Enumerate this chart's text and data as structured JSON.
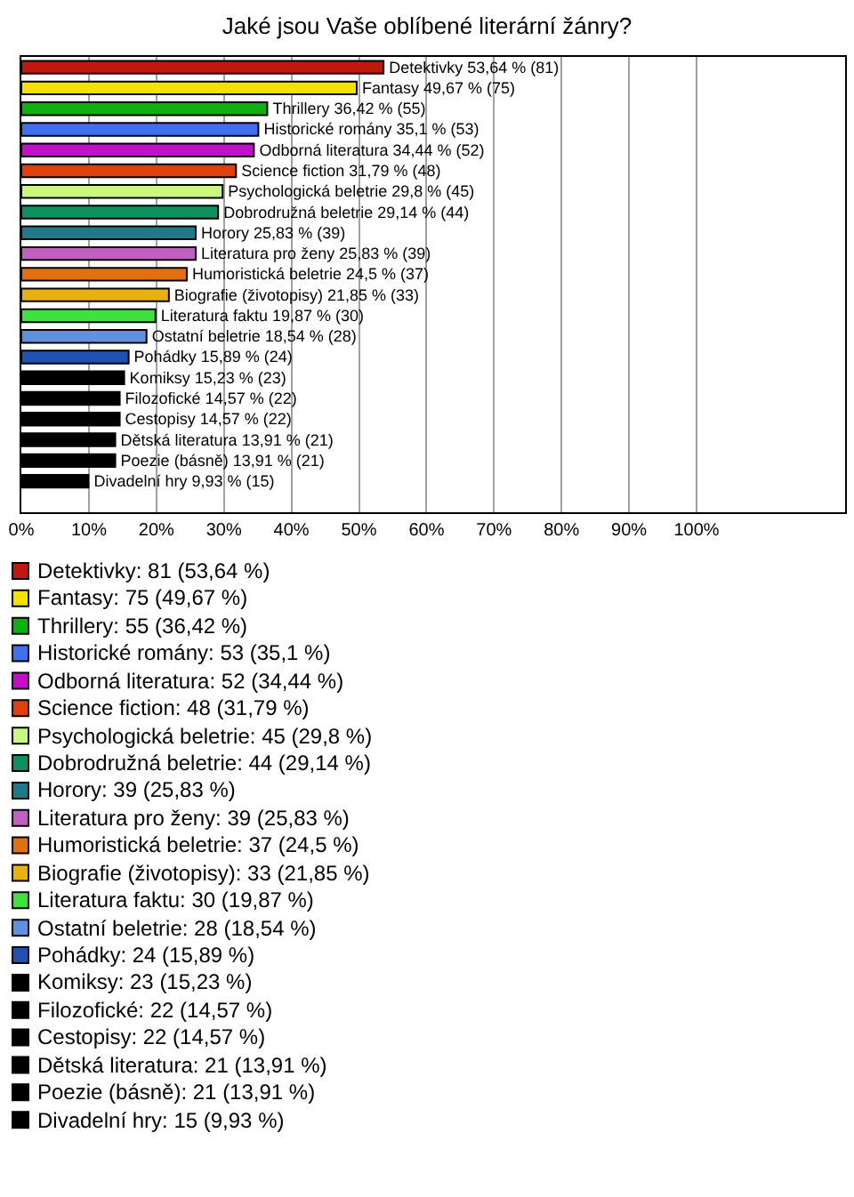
{
  "chart_data": {
    "type": "bar",
    "orientation": "horizontal",
    "title": "Jaké jsou Vaše oblíbené literární žánry?",
    "categories": [
      null,
      null,
      null,
      null,
      null,
      null,
      null,
      null,
      null,
      null,
      null,
      null,
      null,
      null,
      null,
      null,
      null,
      null,
      null,
      null,
      null,
      null
    ],
    "xlim": [
      0,
      122
    ],
    "xticks": [
      {
        "value": 0,
        "label": "0%"
      },
      {
        "value": 10,
        "label": "10%"
      },
      {
        "value": 20,
        "label": "20%"
      },
      {
        "value": 30,
        "label": "30%"
      },
      {
        "value": 40,
        "label": "40%"
      },
      {
        "value": 50,
        "label": "50%"
      },
      {
        "value": 60,
        "label": "60%"
      },
      {
        "value": 70,
        "label": "70%"
      },
      {
        "value": 80,
        "label": "80%"
      },
      {
        "value": 90,
        "label": "90%"
      },
      {
        "value": 100,
        "label": "100%"
      }
    ],
    "grid": "x",
    "legend": "bottom",
    "series": [
      {
        "name": "Detektivky: 81 (53,64 %)",
        "color": "#c0180c",
        "values": [
          53.64,
          null,
          null,
          null,
          null,
          null,
          null,
          null,
          null,
          null,
          null,
          null,
          null,
          null,
          null,
          null,
          null,
          null,
          null,
          null,
          null,
          null
        ],
        "value_labels": [
          "Detektivky 53,64 % (81)",
          null,
          null,
          null,
          null,
          null,
          null,
          null,
          null,
          null,
          null,
          null,
          null,
          null,
          null,
          null,
          null,
          null,
          null,
          null,
          null,
          null
        ]
      },
      {
        "name": "Fantasy: 75 (49,67 %)",
        "color": "#f5e000",
        "values": [
          null,
          49.67,
          null,
          null,
          null,
          null,
          null,
          null,
          null,
          null,
          null,
          null,
          null,
          null,
          null,
          null,
          null,
          null,
          null,
          null,
          null,
          null
        ],
        "value_labels": [
          null,
          "Fantasy 49,67 % (75)",
          null,
          null,
          null,
          null,
          null,
          null,
          null,
          null,
          null,
          null,
          null,
          null,
          null,
          null,
          null,
          null,
          null,
          null,
          null,
          null
        ]
      },
      {
        "name": "Thrillery: 55 (36,42 %)",
        "color": "#10b010",
        "values": [
          null,
          null,
          36.42,
          null,
          null,
          null,
          null,
          null,
          null,
          null,
          null,
          null,
          null,
          null,
          null,
          null,
          null,
          null,
          null,
          null,
          null,
          null
        ],
        "value_labels": [
          null,
          null,
          "Thrillery 36,42 % (55)",
          null,
          null,
          null,
          null,
          null,
          null,
          null,
          null,
          null,
          null,
          null,
          null,
          null,
          null,
          null,
          null,
          null,
          null,
          null
        ]
      },
      {
        "name": "Historické romány: 53 (35,1 %)",
        "color": "#4070f0",
        "values": [
          null,
          null,
          null,
          35.1,
          null,
          null,
          null,
          null,
          null,
          null,
          null,
          null,
          null,
          null,
          null,
          null,
          null,
          null,
          null,
          null,
          null,
          null
        ],
        "value_labels": [
          null,
          null,
          null,
          "Historické romány 35,1 % (53)",
          null,
          null,
          null,
          null,
          null,
          null,
          null,
          null,
          null,
          null,
          null,
          null,
          null,
          null,
          null,
          null,
          null,
          null
        ]
      },
      {
        "name": "Odborná literatura: 52 (34,44 %)",
        "color": "#c010c8",
        "values": [
          null,
          null,
          null,
          null,
          34.44,
          null,
          null,
          null,
          null,
          null,
          null,
          null,
          null,
          null,
          null,
          null,
          null,
          null,
          null,
          null,
          null,
          null
        ],
        "value_labels": [
          null,
          null,
          null,
          null,
          "Odborná literatura 34,44 % (52)",
          null,
          null,
          null,
          null,
          null,
          null,
          null,
          null,
          null,
          null,
          null,
          null,
          null,
          null,
          null,
          null,
          null
        ]
      },
      {
        "name": "Science fiction: 48 (31,79 %)",
        "color": "#e04010",
        "values": [
          null,
          null,
          null,
          null,
          null,
          31.79,
          null,
          null,
          null,
          null,
          null,
          null,
          null,
          null,
          null,
          null,
          null,
          null,
          null,
          null,
          null,
          null
        ],
        "value_labels": [
          null,
          null,
          null,
          null,
          null,
          "Science fiction 31,79 % (48)",
          null,
          null,
          null,
          null,
          null,
          null,
          null,
          null,
          null,
          null,
          null,
          null,
          null,
          null,
          null,
          null
        ]
      },
      {
        "name": "Psychologická beletrie: 45 (29,8 %)",
        "color": "#c8f880",
        "values": [
          null,
          null,
          null,
          null,
          null,
          null,
          29.8,
          null,
          null,
          null,
          null,
          null,
          null,
          null,
          null,
          null,
          null,
          null,
          null,
          null,
          null,
          null
        ],
        "value_labels": [
          null,
          null,
          null,
          null,
          null,
          null,
          "Psychologická beletrie 29,8 % (45)",
          null,
          null,
          null,
          null,
          null,
          null,
          null,
          null,
          null,
          null,
          null,
          null,
          null,
          null,
          null
        ]
      },
      {
        "name": "Dobrodružná beletrie: 44 (29,14 %)",
        "color": "#109060",
        "values": [
          null,
          null,
          null,
          null,
          null,
          null,
          null,
          29.14,
          null,
          null,
          null,
          null,
          null,
          null,
          null,
          null,
          null,
          null,
          null,
          null,
          null,
          null
        ],
        "value_labels": [
          null,
          null,
          null,
          null,
          null,
          null,
          null,
          "Dobrodružná beletrie 29,14 % (44)",
          null,
          null,
          null,
          null,
          null,
          null,
          null,
          null,
          null,
          null,
          null,
          null,
          null,
          null
        ]
      },
      {
        "name": "Horory: 39 (25,83 %)",
        "color": "#207888",
        "values": [
          null,
          null,
          null,
          null,
          null,
          null,
          null,
          null,
          25.83,
          null,
          null,
          null,
          null,
          null,
          null,
          null,
          null,
          null,
          null,
          null,
          null,
          null
        ],
        "value_labels": [
          null,
          null,
          null,
          null,
          null,
          null,
          null,
          null,
          "Horory 25,83 % (39)",
          null,
          null,
          null,
          null,
          null,
          null,
          null,
          null,
          null,
          null,
          null,
          null,
          null
        ]
      },
      {
        "name": "Literatura pro ženy: 39 (25,83 %)",
        "color": "#c060c0",
        "values": [
          null,
          null,
          null,
          null,
          null,
          null,
          null,
          null,
          null,
          25.83,
          null,
          null,
          null,
          null,
          null,
          null,
          null,
          null,
          null,
          null,
          null,
          null
        ],
        "value_labels": [
          null,
          null,
          null,
          null,
          null,
          null,
          null,
          null,
          null,
          "Literatura pro ženy 25,83 % (39)",
          null,
          null,
          null,
          null,
          null,
          null,
          null,
          null,
          null,
          null,
          null,
          null
        ]
      },
      {
        "name": "Humoristická beletrie: 37 (24,5 %)",
        "color": "#e07010",
        "values": [
          null,
          null,
          null,
          null,
          null,
          null,
          null,
          null,
          null,
          null,
          24.5,
          null,
          null,
          null,
          null,
          null,
          null,
          null,
          null,
          null,
          null,
          null
        ],
        "value_labels": [
          null,
          null,
          null,
          null,
          null,
          null,
          null,
          null,
          null,
          null,
          "Humoristická beletrie 24,5 % (37)",
          null,
          null,
          null,
          null,
          null,
          null,
          null,
          null,
          null,
          null,
          null
        ]
      },
      {
        "name": "Biografie (životopisy): 33 (21,85 %)",
        "color": "#e8b010",
        "values": [
          null,
          null,
          null,
          null,
          null,
          null,
          null,
          null,
          null,
          null,
          null,
          21.85,
          null,
          null,
          null,
          null,
          null,
          null,
          null,
          null,
          null,
          null
        ],
        "value_labels": [
          null,
          null,
          null,
          null,
          null,
          null,
          null,
          null,
          null,
          null,
          null,
          "Biografie (životopisy) 21,85 % (33)",
          null,
          null,
          null,
          null,
          null,
          null,
          null,
          null,
          null,
          null
        ]
      },
      {
        "name": "Literatura faktu: 30 (19,87 %)",
        "color": "#40e040",
        "values": [
          null,
          null,
          null,
          null,
          null,
          null,
          null,
          null,
          null,
          null,
          null,
          null,
          19.87,
          null,
          null,
          null,
          null,
          null,
          null,
          null,
          null,
          null
        ],
        "value_labels": [
          null,
          null,
          null,
          null,
          null,
          null,
          null,
          null,
          null,
          null,
          null,
          null,
          "Literatura faktu 19,87 % (30)",
          null,
          null,
          null,
          null,
          null,
          null,
          null,
          null,
          null
        ]
      },
      {
        "name": "Ostatní beletrie: 28 (18,54 %)",
        "color": "#6090e0",
        "values": [
          null,
          null,
          null,
          null,
          null,
          null,
          null,
          null,
          null,
          null,
          null,
          null,
          null,
          18.54,
          null,
          null,
          null,
          null,
          null,
          null,
          null,
          null
        ],
        "value_labels": [
          null,
          null,
          null,
          null,
          null,
          null,
          null,
          null,
          null,
          null,
          null,
          null,
          null,
          "Ostatní beletrie 18,54 % (28)",
          null,
          null,
          null,
          null,
          null,
          null,
          null,
          null
        ]
      },
      {
        "name": "Pohádky: 24 (15,89 %)",
        "color": "#2050b0",
        "values": [
          null,
          null,
          null,
          null,
          null,
          null,
          null,
          null,
          null,
          null,
          null,
          null,
          null,
          null,
          15.89,
          null,
          null,
          null,
          null,
          null,
          null,
          null
        ],
        "value_labels": [
          null,
          null,
          null,
          null,
          null,
          null,
          null,
          null,
          null,
          null,
          null,
          null,
          null,
          null,
          "Pohádky 15,89 % (24)",
          null,
          null,
          null,
          null,
          null,
          null,
          null
        ]
      },
      {
        "name": "Komiksy: 23 (15,23 %)",
        "color": "#000000",
        "values": [
          null,
          null,
          null,
          null,
          null,
          null,
          null,
          null,
          null,
          null,
          null,
          null,
          null,
          null,
          null,
          15.23,
          null,
          null,
          null,
          null,
          null,
          null
        ],
        "value_labels": [
          null,
          null,
          null,
          null,
          null,
          null,
          null,
          null,
          null,
          null,
          null,
          null,
          null,
          null,
          null,
          "Komiksy 15,23 % (23)",
          null,
          null,
          null,
          null,
          null,
          null
        ]
      },
      {
        "name": "Filozofické: 22 (14,57 %)",
        "color": "#000000",
        "values": [
          null,
          null,
          null,
          null,
          null,
          null,
          null,
          null,
          null,
          null,
          null,
          null,
          null,
          null,
          null,
          null,
          14.57,
          null,
          null,
          null,
          null,
          null
        ],
        "value_labels": [
          null,
          null,
          null,
          null,
          null,
          null,
          null,
          null,
          null,
          null,
          null,
          null,
          null,
          null,
          null,
          null,
          "Filozofické 14,57 % (22)",
          null,
          null,
          null,
          null,
          null
        ]
      },
      {
        "name": "Cestopisy: 22 (14,57 %)",
        "color": "#000000",
        "values": [
          null,
          null,
          null,
          null,
          null,
          null,
          null,
          null,
          null,
          null,
          null,
          null,
          null,
          null,
          null,
          null,
          null,
          14.57,
          null,
          null,
          null,
          null
        ],
        "value_labels": [
          null,
          null,
          null,
          null,
          null,
          null,
          null,
          null,
          null,
          null,
          null,
          null,
          null,
          null,
          null,
          null,
          null,
          "Cestopisy 14,57 % (22)",
          null,
          null,
          null,
          null
        ]
      },
      {
        "name": "Dětská literatura: 21 (13,91 %)",
        "color": "#000000",
        "values": [
          null,
          null,
          null,
          null,
          null,
          null,
          null,
          null,
          null,
          null,
          null,
          null,
          null,
          null,
          null,
          null,
          null,
          null,
          13.91,
          null,
          null,
          null
        ],
        "value_labels": [
          null,
          null,
          null,
          null,
          null,
          null,
          null,
          null,
          null,
          null,
          null,
          null,
          null,
          null,
          null,
          null,
          null,
          null,
          "Dětská literatura 13,91 % (21)",
          null,
          null,
          null
        ]
      },
      {
        "name": "Poezie (básně): 21 (13,91 %)",
        "color": "#000000",
        "values": [
          null,
          null,
          null,
          null,
          null,
          null,
          null,
          null,
          null,
          null,
          null,
          null,
          null,
          null,
          null,
          null,
          null,
          null,
          null,
          13.91,
          null,
          null
        ],
        "value_labels": [
          null,
          null,
          null,
          null,
          null,
          null,
          null,
          null,
          null,
          null,
          null,
          null,
          null,
          null,
          null,
          null,
          null,
          null,
          null,
          "Poezie (básně) 13,91 % (21)",
          null,
          null
        ]
      },
      {
        "name": "Divadelní hry: 15 (9,93 %)",
        "color": "#000000",
        "values": [
          null,
          null,
          null,
          null,
          null,
          null,
          null,
          null,
          null,
          null,
          null,
          null,
          null,
          null,
          null,
          null,
          null,
          null,
          null,
          null,
          9.93,
          null
        ],
        "value_labels": [
          null,
          null,
          null,
          null,
          null,
          null,
          null,
          null,
          null,
          null,
          null,
          null,
          null,
          null,
          null,
          null,
          null,
          null,
          null,
          null,
          "Divadelní hry 9,93 % (15)",
          null
        ]
      }
    ]
  }
}
